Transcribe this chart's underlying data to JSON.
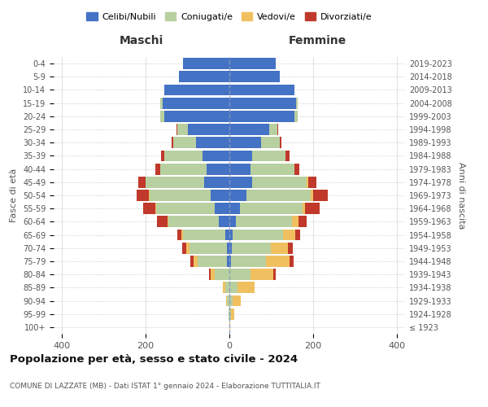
{
  "age_groups": [
    "100+",
    "95-99",
    "90-94",
    "85-89",
    "80-84",
    "75-79",
    "70-74",
    "65-69",
    "60-64",
    "55-59",
    "50-54",
    "45-49",
    "40-44",
    "35-39",
    "30-34",
    "25-29",
    "20-24",
    "15-19",
    "10-14",
    "5-9",
    "0-4"
  ],
  "birth_years": [
    "≤ 1923",
    "1924-1928",
    "1929-1933",
    "1934-1938",
    "1939-1943",
    "1944-1948",
    "1949-1953",
    "1954-1958",
    "1959-1963",
    "1964-1968",
    "1969-1973",
    "1974-1978",
    "1979-1983",
    "1984-1988",
    "1989-1993",
    "1994-1998",
    "1999-2003",
    "2004-2008",
    "2009-2013",
    "2014-2018",
    "2019-2023"
  ],
  "males": {
    "celibi": [
      0,
      0,
      0,
      0,
      0,
      5,
      5,
      10,
      25,
      35,
      45,
      60,
      55,
      65,
      80,
      100,
      155,
      160,
      155,
      120,
      110
    ],
    "coniugati": [
      0,
      2,
      5,
      10,
      35,
      70,
      90,
      100,
      120,
      140,
      145,
      140,
      110,
      90,
      55,
      25,
      10,
      5,
      0,
      0,
      0
    ],
    "vedovi": [
      0,
      0,
      2,
      5,
      10,
      10,
      8,
      5,
      3,
      2,
      2,
      0,
      0,
      0,
      0,
      0,
      0,
      0,
      0,
      0,
      0
    ],
    "divorziati": [
      0,
      0,
      0,
      0,
      3,
      8,
      10,
      10,
      25,
      30,
      30,
      18,
      12,
      8,
      3,
      2,
      0,
      0,
      0,
      0,
      0
    ]
  },
  "females": {
    "nubili": [
      0,
      0,
      0,
      0,
      0,
      3,
      5,
      8,
      15,
      25,
      40,
      55,
      50,
      55,
      75,
      95,
      155,
      160,
      155,
      120,
      110
    ],
    "coniugate": [
      0,
      3,
      8,
      20,
      50,
      85,
      95,
      120,
      135,
      150,
      155,
      130,
      105,
      80,
      45,
      20,
      8,
      3,
      0,
      0,
      0
    ],
    "vedove": [
      1,
      8,
      20,
      40,
      55,
      55,
      40,
      30,
      15,
      5,
      5,
      3,
      0,
      0,
      0,
      0,
      0,
      0,
      0,
      0,
      0
    ],
    "divorziate": [
      0,
      0,
      0,
      0,
      5,
      10,
      12,
      12,
      20,
      35,
      35,
      20,
      12,
      8,
      4,
      2,
      0,
      0,
      0,
      0,
      0
    ]
  },
  "colors": {
    "celibi": "#4472c4",
    "coniugati": "#b8cfa0",
    "vedovi": "#f0c060",
    "divorziati": "#c0392b"
  },
  "title": "Popolazione per età, sesso e stato civile - 2024",
  "subtitle": "COMUNE DI LAZZATE (MB) - Dati ISTAT 1° gennaio 2024 - Elaborazione TUTTITALIA.IT",
  "xlabel_left": "Maschi",
  "xlabel_right": "Femmine",
  "ylabel_left": "Fasce di età",
  "ylabel_right": "Anni di nascita",
  "xlim": 420,
  "legend_labels": [
    "Celibi/Nubili",
    "Coniugati/e",
    "Vedovi/e",
    "Divorziati/e"
  ],
  "background_color": "#ffffff",
  "grid_color": "#cccccc"
}
